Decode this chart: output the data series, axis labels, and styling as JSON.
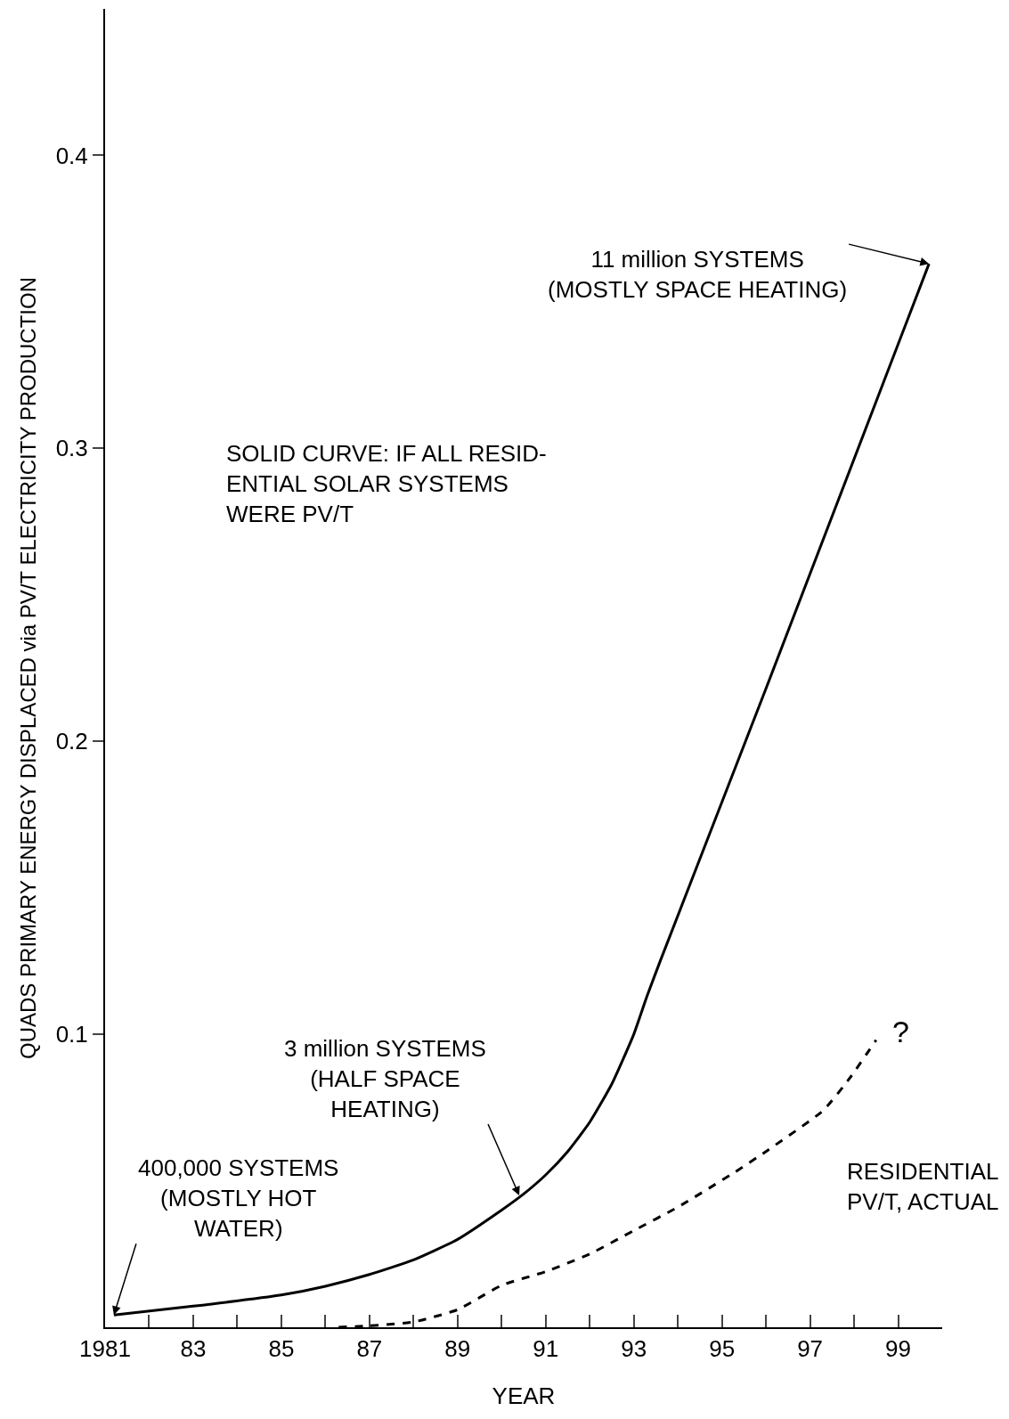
{
  "chart_data": {
    "type": "line",
    "xlabel": "YEAR",
    "ylabel": "QUADS PRIMARY ENERGY DISPLACED via PV/T ELECTRICITY PRODUCTION",
    "xlim": [
      1981,
      2000
    ],
    "ylim": [
      0,
      0.45
    ],
    "xticks": [
      {
        "value": 1981,
        "label": "1981"
      },
      {
        "value": 1982,
        "label": null
      },
      {
        "value": 1983,
        "label": "83"
      },
      {
        "value": 1984,
        "label": null
      },
      {
        "value": 1985,
        "label": "85"
      },
      {
        "value": 1986,
        "label": null
      },
      {
        "value": 1987,
        "label": "87"
      },
      {
        "value": 1988,
        "label": null
      },
      {
        "value": 1989,
        "label": "89"
      },
      {
        "value": 1990,
        "label": null
      },
      {
        "value": 1991,
        "label": "91"
      },
      {
        "value": 1992,
        "label": null
      },
      {
        "value": 1993,
        "label": "93"
      },
      {
        "value": 1994,
        "label": null
      },
      {
        "value": 1995,
        "label": "95"
      },
      {
        "value": 1996,
        "label": null
      },
      {
        "value": 1997,
        "label": "97"
      },
      {
        "value": 1998,
        "label": null
      },
      {
        "value": 1999,
        "label": "99"
      }
    ],
    "yticks": [
      0.1,
      0.2,
      0.3,
      0.4
    ],
    "legend": false,
    "series": [
      {
        "color": "#000000",
        "line_style": "solid",
        "x": [
          1981.2,
          1983,
          1985,
          1986,
          1987,
          1988,
          1989,
          1990,
          1990.5,
          1991,
          1991.5,
          1992,
          1992.5,
          1993,
          1993.3,
          1993.6,
          1996,
          1999.7
        ],
        "values": [
          0.0042,
          0.0072,
          0.011,
          0.014,
          0.018,
          0.023,
          0.03,
          0.04,
          0.0455,
          0.052,
          0.06,
          0.07,
          0.083,
          0.1,
          0.113,
          0.125,
          0.218,
          0.363
        ]
      },
      {
        "color": "#000000",
        "line_style": "dashed",
        "x": [
          1986.3,
          1987,
          1988,
          1989,
          1990,
          1991,
          1992,
          1993,
          1994,
          1995.3,
          1996,
          1997.3,
          1997.9,
          1998.5
        ],
        "values": [
          0.0,
          0.0005,
          0.0018,
          0.006,
          0.0143,
          0.019,
          0.025,
          0.033,
          0.041,
          0.053,
          0.06,
          0.074,
          0.085,
          0.098
        ]
      }
    ],
    "annotations": [
      {
        "text": "400,000 SYSTEMS\n(MOSTLY HOT\nWATER)",
        "x": 1981.2,
        "y": 0.0042
      },
      {
        "text": "3 million SYSTEMS\n(HALF SPACE\nHEATING)",
        "x": 1990.4,
        "y": 0.045
      },
      {
        "text": "11 million SYSTEMS\n(MOSTLY SPACE HEATING)",
        "x": 1999.7,
        "y": 0.363
      },
      "SOLID CURVE: IF ALL RESID-\nENTIAL SOLAR SYSTEMS\nWERE PV/T",
      "RESIDENTIAL\nPV/T, ACTUAL",
      "?"
    ]
  }
}
